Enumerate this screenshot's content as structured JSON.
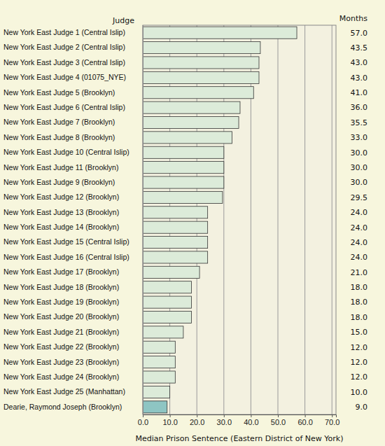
{
  "chart_data": {
    "type": "bar",
    "orientation": "horizontal",
    "ylabel": "Judge",
    "xlabel": "Median Prison Sentence (Eastern District of New York)",
    "value_label_title": "Months",
    "categories": [
      "New York East Judge 1 (Central Islip)",
      "New York East Judge 2 (Central Islip)",
      "New York East Judge 3 (Central Islip)",
      "New York East Judge 4 (01075_NYE)",
      "New York East Judge 5 (Brooklyn)",
      "New York East Judge 6 (Central Islip)",
      "New York East Judge 7 (Brooklyn)",
      "New York East Judge 8 (Brooklyn)",
      "New York East Judge 10 (Central Islip)",
      "New York East Judge 11 (Brooklyn)",
      "New York East Judge 9 (Brooklyn)",
      "New York East Judge 12 (Brooklyn)",
      "New York East Judge 13 (Brooklyn)",
      "New York East Judge 14 (Brooklyn)",
      "New York East Judge 15 (Central Islip)",
      "New York East Judge 16 (Central Islip)",
      "New York East Judge 17 (Brooklyn)",
      "New York East Judge 18 (Brooklyn)",
      "New York East Judge 19 (Brooklyn)",
      "New York East Judge 20 (Brooklyn)",
      "New York East Judge 21 (Brooklyn)",
      "New York East Judge 22 (Brooklyn)",
      "New York East Judge 23 (Brooklyn)",
      "New York East Judge 24 (Brooklyn)",
      "New York East Judge 25 (Manhattan)",
      "Dearie, Raymond Joseph (Brooklyn)"
    ],
    "values": [
      57.0,
      43.5,
      43.0,
      43.0,
      41.0,
      36.0,
      35.5,
      33.0,
      30.0,
      30.0,
      30.0,
      29.5,
      24.0,
      24.0,
      24.0,
      24.0,
      21.0,
      18.0,
      18.0,
      18.0,
      15.0,
      12.0,
      12.0,
      12.0,
      10.0,
      9.0
    ],
    "value_labels": [
      "57.0",
      "43.5",
      "43.0",
      "43.0",
      "41.0",
      "36.0",
      "35.5",
      "33.0",
      "30.0",
      "30.0",
      "30.0",
      "29.5",
      "24.0",
      "24.0",
      "24.0",
      "24.0",
      "21.0",
      "18.0",
      "18.0",
      "18.0",
      "15.0",
      "12.0",
      "12.0",
      "12.0",
      "10.0",
      "9.0"
    ],
    "data_labels": true,
    "colors": [
      "#dcebd9",
      "#dcebd9",
      "#dcebd9",
      "#dcebd9",
      "#dcebd9",
      "#dcebd9",
      "#dcebd9",
      "#dcebd9",
      "#dcebd9",
      "#dcebd9",
      "#dcebd9",
      "#dcebd9",
      "#dcebd9",
      "#dcebd9",
      "#dcebd9",
      "#dcebd9",
      "#dcebd9",
      "#dcebd9",
      "#dcebd9",
      "#dcebd9",
      "#dcebd9",
      "#dcebd9",
      "#dcebd9",
      "#dcebd9",
      "#dcebd9",
      "#8ec5c3"
    ],
    "xlim": [
      0,
      71.5
    ],
    "xticks": [
      {
        "value": 0,
        "label": "0.0"
      },
      {
        "value": 10,
        "label": "10.0"
      },
      {
        "value": 20,
        "label": "20.0"
      },
      {
        "value": 30,
        "label": "30.0"
      },
      {
        "value": 40,
        "label": "40.0"
      },
      {
        "value": 50,
        "label": "50.0"
      },
      {
        "value": 60,
        "label": "60.0"
      },
      {
        "value": 70,
        "label": "70.0"
      }
    ],
    "grid": true
  }
}
